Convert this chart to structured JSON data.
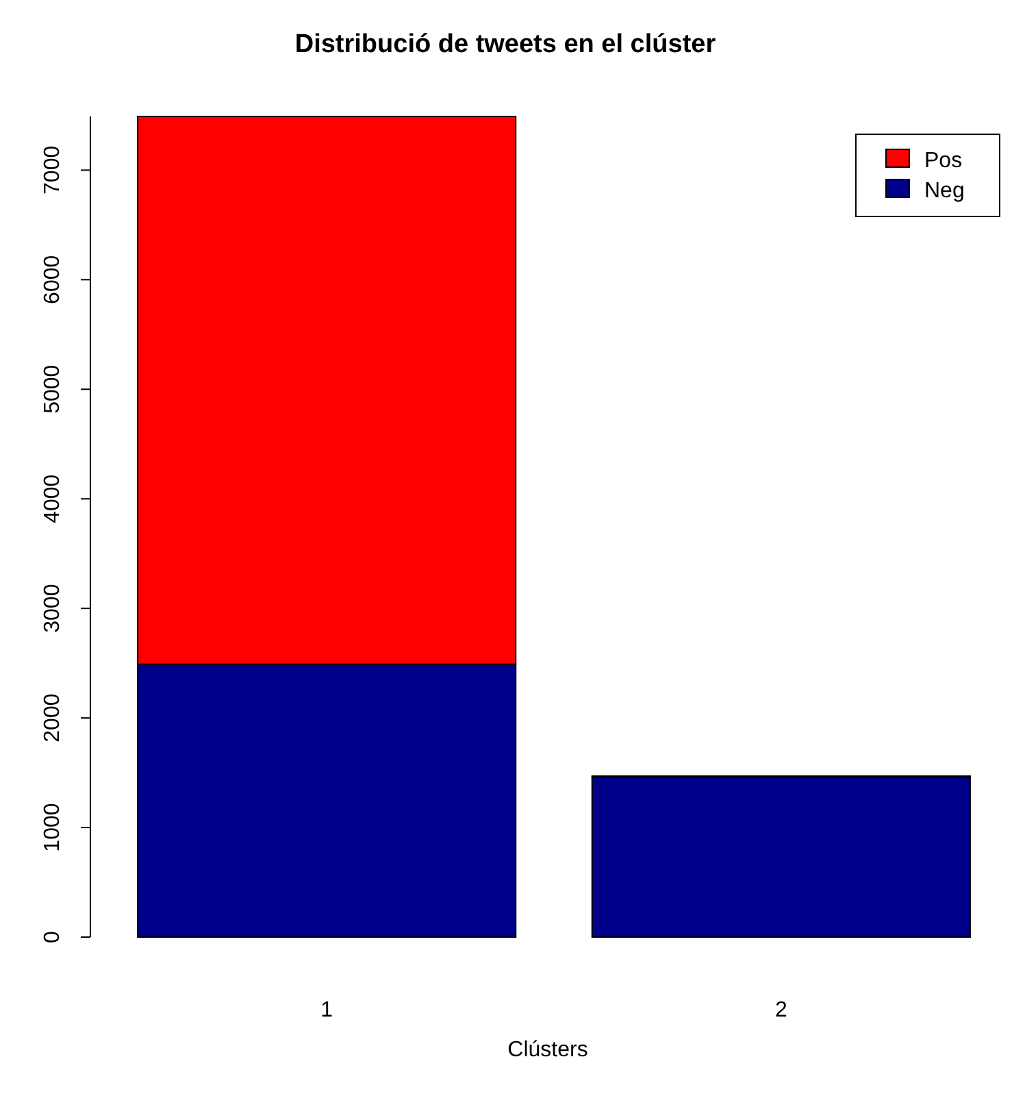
{
  "chart_data": {
    "type": "bar",
    "title": "Distribució de tweets en el clúster",
    "xlabel": "Clústers",
    "categories": [
      "1",
      "2"
    ],
    "stacked": true,
    "series": [
      {
        "name": "Neg",
        "color": "#00008b",
        "values": [
          2490,
          1460
        ]
      },
      {
        "name": "Pos",
        "color": "#ff0000",
        "values": [
          5000,
          10
        ]
      }
    ],
    "ylim": [
      0,
      7490
    ],
    "yticks": [
      0,
      1000,
      2000,
      3000,
      4000,
      5000,
      6000,
      7000
    ],
    "grid": false,
    "legend": "top right"
  }
}
